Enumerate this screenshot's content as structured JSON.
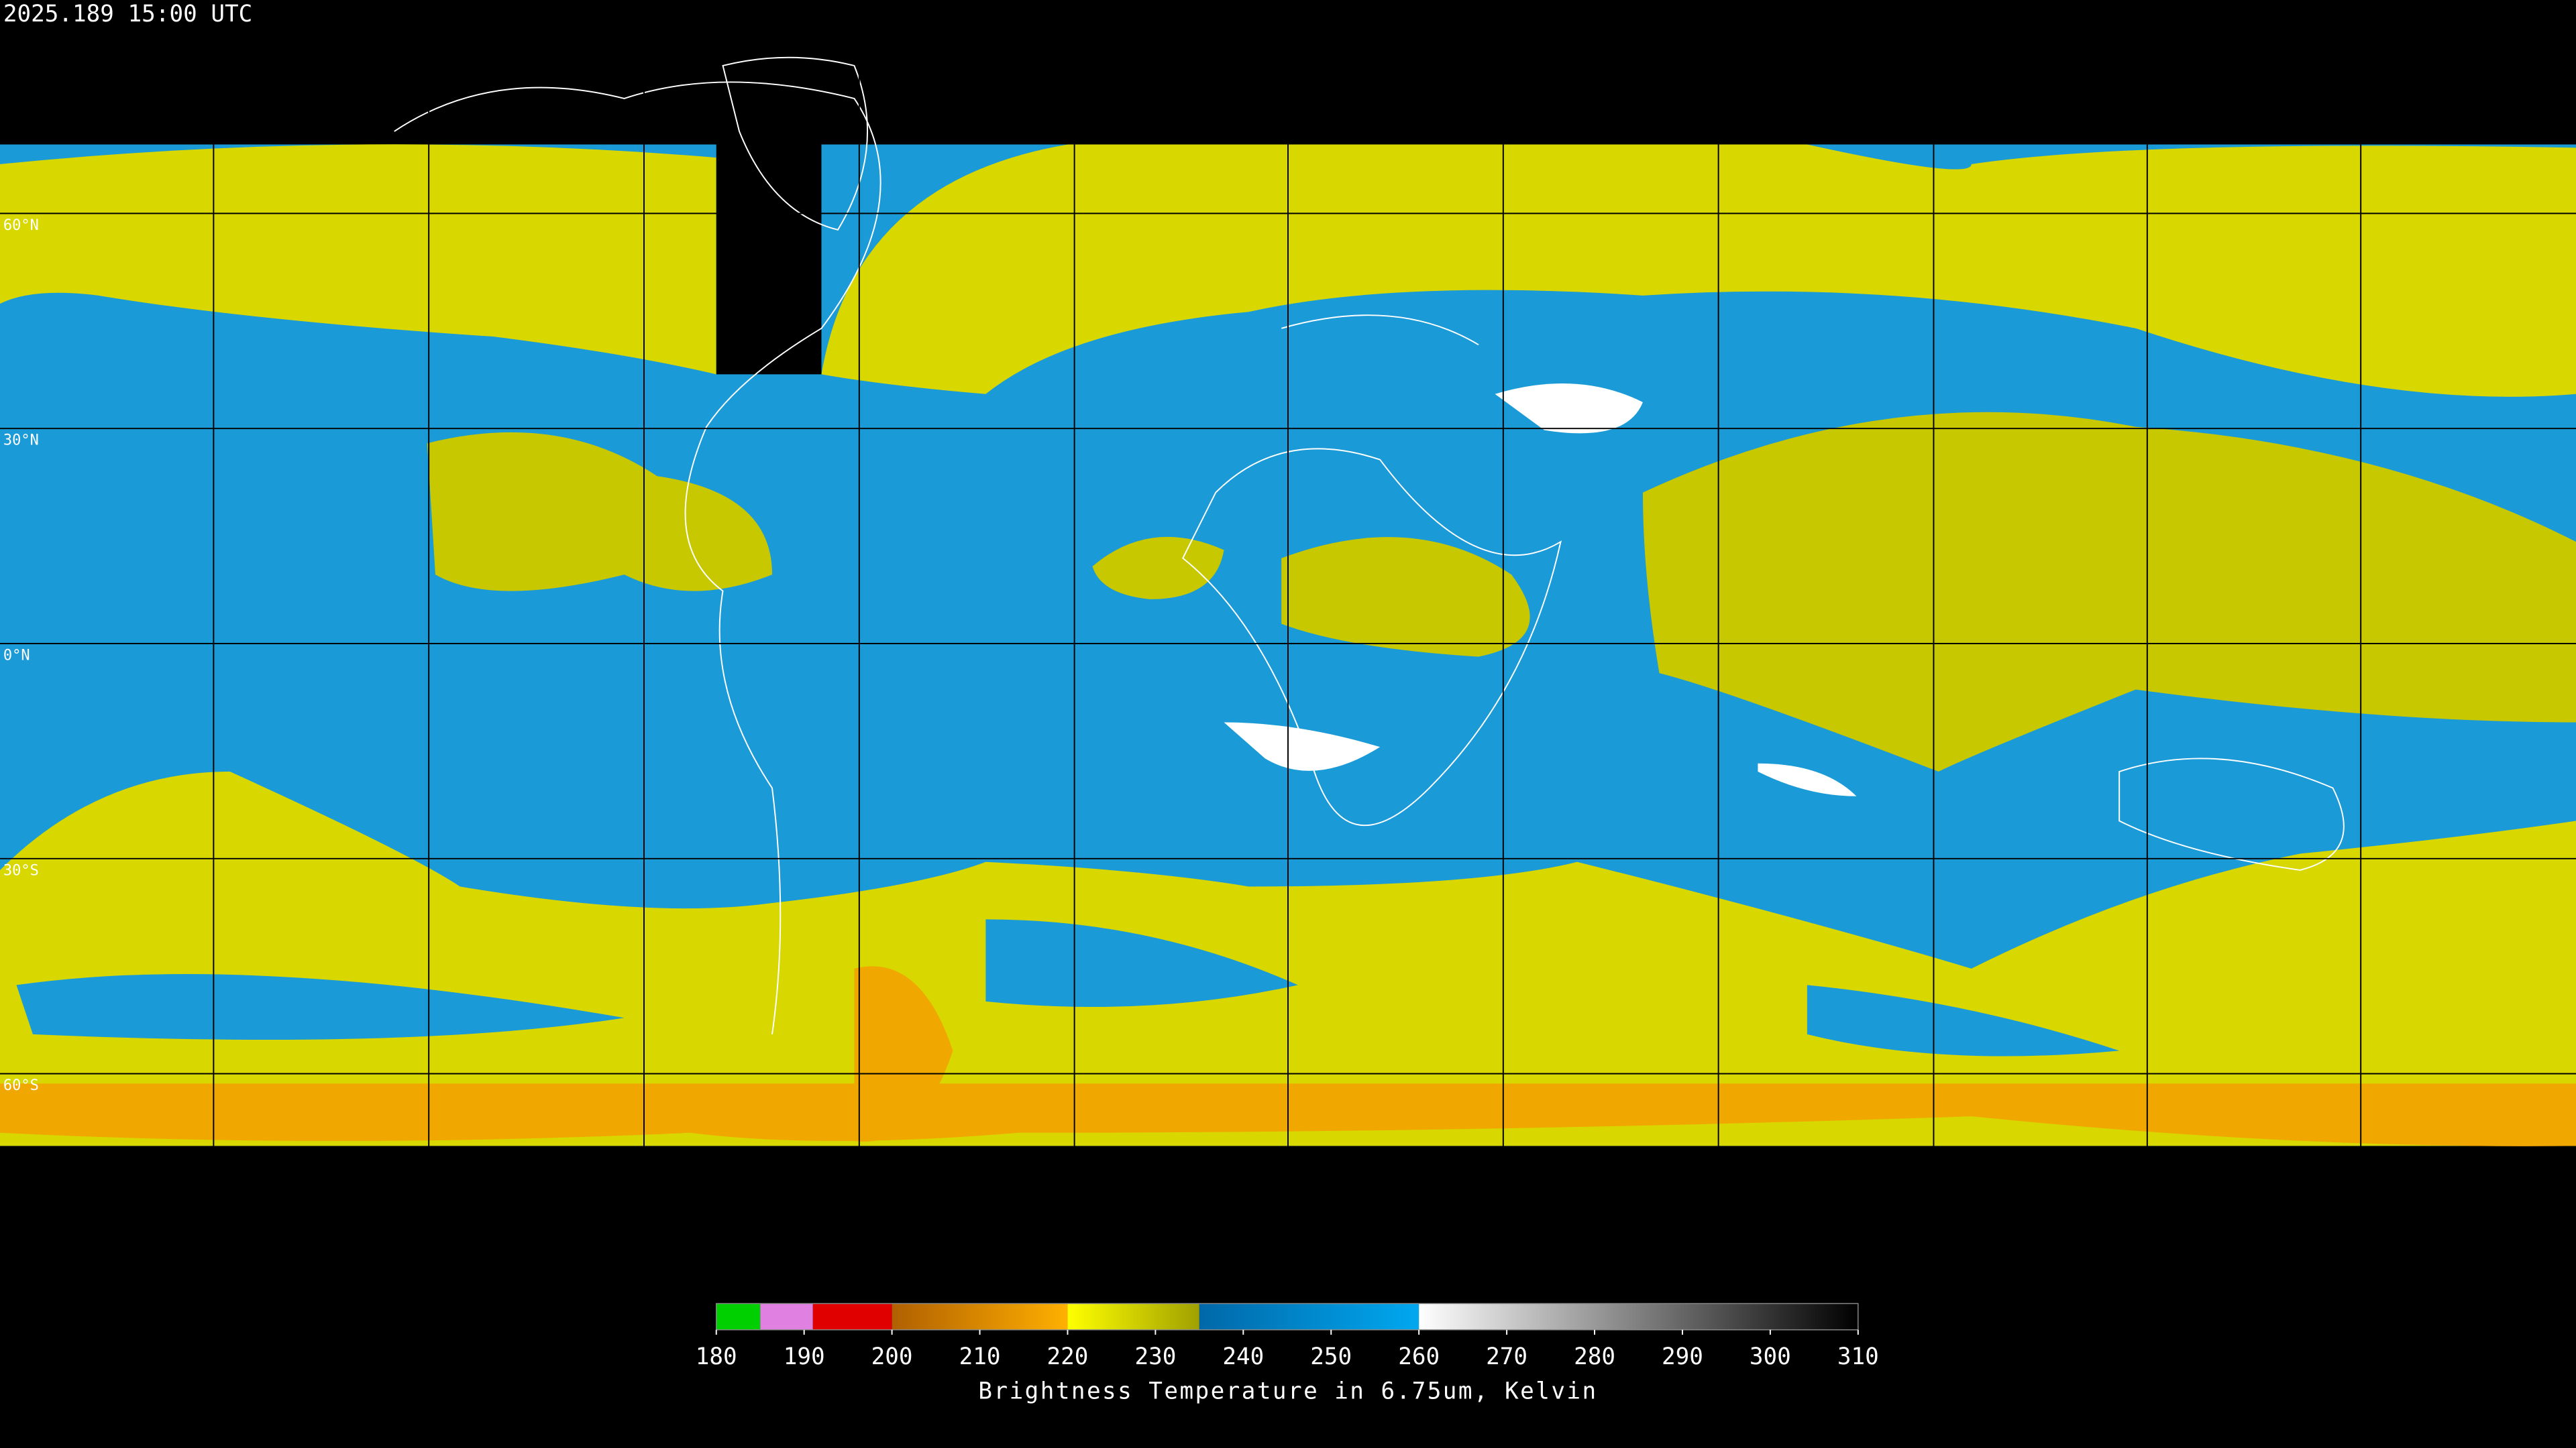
{
  "header": {
    "title": "2025.189 15:00 UTC"
  },
  "map": {
    "lat_labels": [
      "60°N",
      "30°N",
      "0°N",
      "30°S",
      "60°S"
    ]
  },
  "chart_data": {
    "type": "colorbar",
    "xlabel": "Brightness Temperature in 6.75um, Kelvin",
    "xlim": [
      180,
      310
    ],
    "xticks": [
      180,
      190,
      200,
      210,
      220,
      230,
      240,
      250,
      260,
      270,
      280,
      290,
      300,
      310
    ],
    "segments": [
      {
        "from": 180,
        "to": 185,
        "colors": [
          "#00d000",
          "#00d000"
        ]
      },
      {
        "from": 185,
        "to": 191,
        "colors": [
          "#e080e0",
          "#e080e0"
        ]
      },
      {
        "from": 191,
        "to": 200,
        "colors": [
          "#e00000",
          "#e00000"
        ]
      },
      {
        "from": 200,
        "to": 220,
        "colors": [
          "#b06000",
          "#ffb000"
        ]
      },
      {
        "from": 220,
        "to": 235,
        "colors": [
          "#ffff00",
          "#a0a000"
        ]
      },
      {
        "from": 235,
        "to": 260,
        "colors": [
          "#0068a8",
          "#00a8f0"
        ]
      },
      {
        "from": 260,
        "to": 310,
        "colors": [
          "#ffffff",
          "#000000"
        ]
      }
    ]
  }
}
